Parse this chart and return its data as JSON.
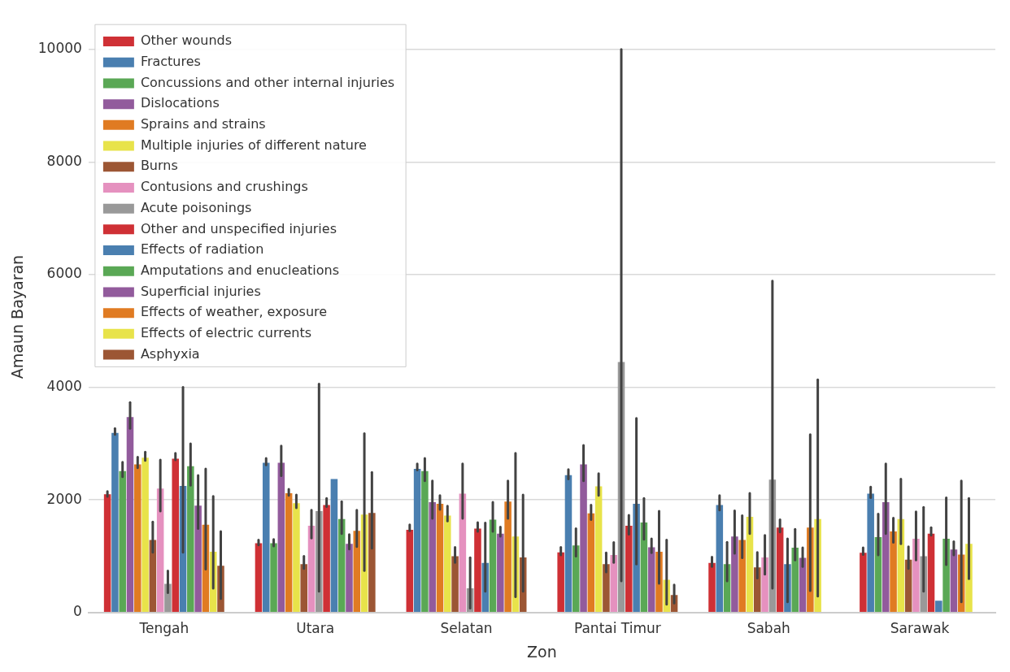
{
  "chart_data": {
    "type": "bar",
    "xlabel": "Zon",
    "ylabel": "Amaun Bayaran",
    "categories": [
      "Tengah",
      "Utara",
      "Selatan",
      "Pantai Timur",
      "Sabah",
      "Sarawak"
    ],
    "ylim": [
      0,
      10500
    ],
    "yticks": [
      0,
      2000,
      4000,
      6000,
      8000,
      10000
    ],
    "grid": "y",
    "legend": "top left",
    "series": [
      {
        "name": "Other wounds",
        "color": "#cf3035",
        "values": [
          2100,
          1230,
          1470,
          1070,
          880,
          1060
        ],
        "errors": [
          [
            2060,
            2150
          ],
          [
            1200,
            1290
          ],
          [
            1450,
            1560
          ],
          [
            1020,
            1160
          ],
          [
            815,
            985
          ],
          [
            1030,
            1150
          ]
        ]
      },
      {
        "name": "Fractures",
        "color": "#4a7fb0",
        "values": [
          3190,
          2660,
          2550,
          2440,
          1910,
          2110
        ],
        "errors": [
          [
            3160,
            3270
          ],
          [
            2620,
            2740
          ],
          [
            2530,
            2640
          ],
          [
            2370,
            2540
          ],
          [
            1820,
            2080
          ],
          [
            2040,
            2230
          ]
        ]
      },
      {
        "name": "Concussions and other internal injuries",
        "color": "#5aa855",
        "values": [
          2510,
          1230,
          2510,
          1190,
          860,
          1340
        ],
        "errors": [
          [
            2410,
            2670
          ],
          [
            1180,
            1300
          ],
          [
            2340,
            2740
          ],
          [
            1000,
            1490
          ],
          [
            560,
            1250
          ],
          [
            1020,
            1750
          ]
        ]
      },
      {
        "name": "Dislocations",
        "color": "#925b9c",
        "values": [
          3470,
          2660,
          1960,
          2630,
          1350,
          1960
        ],
        "errors": [
          [
            3270,
            3730
          ],
          [
            2430,
            2960
          ],
          [
            1670,
            2340
          ],
          [
            2340,
            2970
          ],
          [
            1050,
            1810
          ],
          [
            1400,
            2640
          ]
        ]
      },
      {
        "name": "Sprains and strains",
        "color": "#e07b22",
        "values": [
          2630,
          2120,
          1930,
          1760,
          1290,
          1440
        ],
        "errors": [
          [
            2570,
            2760
          ],
          [
            2080,
            2190
          ],
          [
            1830,
            2080
          ],
          [
            1650,
            1910
          ],
          [
            970,
            1720
          ],
          [
            1245,
            1680
          ]
        ]
      },
      {
        "name": "Multiple injuries of different nature",
        "color": "#e8e34a",
        "values": [
          2750,
          1940,
          1720,
          2240,
          1700,
          1660
        ],
        "errors": [
          [
            2700,
            2850
          ],
          [
            1860,
            2090
          ],
          [
            1625,
            1890
          ],
          [
            2080,
            2470
          ],
          [
            1400,
            2120
          ],
          [
            1220,
            2370
          ]
        ]
      },
      {
        "name": "Burns",
        "color": "#9c5634",
        "values": [
          1290,
          860,
          1000,
          860,
          800,
          940
        ],
        "errors": [
          [
            1070,
            1610
          ],
          [
            780,
            1000
          ],
          [
            890,
            1160
          ],
          [
            720,
            1060
          ],
          [
            610,
            1070
          ],
          [
            780,
            1170
          ]
        ]
      },
      {
        "name": "Contusions and crushings",
        "color": "#e591bf",
        "values": [
          2200,
          1540,
          2110,
          1020,
          980,
          1310
        ],
        "errors": [
          [
            1800,
            2710
          ],
          [
            1320,
            1820
          ],
          [
            1670,
            2640
          ],
          [
            890,
            1245
          ],
          [
            680,
            1370
          ],
          [
            930,
            1790
          ]
        ]
      },
      {
        "name": "Acute poisonings",
        "color": "#999999",
        "values": [
          510,
          1800,
          430,
          4450,
          2360,
          1000
        ],
        "errors": [
          [
            350,
            740
          ],
          [
            375,
            4060
          ],
          [
            75,
            975
          ],
          [
            560,
            10000
          ],
          [
            430,
            5890
          ],
          [
            375,
            1870
          ]
        ]
      },
      {
        "name": "Other and unspecified injuries",
        "color": "#cf3035",
        "values": [
          2730,
          1910,
          1490,
          1540,
          1510,
          1400
        ],
        "errors": [
          [
            2710,
            2830
          ],
          [
            1880,
            2030
          ],
          [
            1440,
            1600
          ],
          [
            1390,
            1730
          ],
          [
            1430,
            1650
          ],
          [
            1370,
            1510
          ]
        ]
      },
      {
        "name": "Effects of radiation",
        "color": "#4a7fb0",
        "values": [
          2250,
          2370,
          880,
          1930,
          860,
          210
        ],
        "errors": [
          [
            1070,
            4000
          ],
          null,
          [
            375,
            1590
          ],
          [
            860,
            3450
          ],
          [
            190,
            1310
          ],
          null
        ]
      },
      {
        "name": "Amputations and enucleations",
        "color": "#5aa855",
        "values": [
          2600,
          1660,
          1650,
          1600,
          1150,
          1310
        ],
        "errors": [
          [
            2260,
            3000
          ],
          [
            1400,
            1970
          ],
          [
            1440,
            1960
          ],
          [
            1300,
            2030
          ],
          [
            930,
            1480
          ],
          [
            850,
            2040
          ]
        ]
      },
      {
        "name": "Superficial injuries",
        "color": "#925b9c",
        "values": [
          1900,
          1220,
          1400,
          1160,
          970,
          1120
        ],
        "errors": [
          [
            1490,
            2435
          ],
          [
            1125,
            1385
          ],
          [
            1355,
            1520
          ],
          [
            1060,
            1310
          ],
          [
            815,
            1150
          ],
          [
            1020,
            1260
          ]
        ]
      },
      {
        "name": "Effects of weather, exposure",
        "color": "#e07b22",
        "values": [
          1560,
          1450,
          1970,
          1080,
          1510,
          1030
        ],
        "errors": [
          [
            770,
            2550
          ],
          [
            1170,
            1820
          ],
          [
            1670,
            2340
          ],
          [
            515,
            1800
          ],
          [
            385,
            3160
          ],
          [
            190,
            2340
          ]
        ]
      },
      {
        "name": "Effects of electric currents",
        "color": "#e8e34a",
        "values": [
          1080,
          1740,
          1350,
          580,
          1660,
          1220
        ],
        "errors": [
          [
            430,
            2065
          ],
          [
            745,
            3180
          ],
          [
            280,
            2830
          ],
          [
            145,
            1290
          ],
          [
            290,
            4135
          ],
          [
            600,
            2030
          ]
        ]
      },
      {
        "name": "Asphyxia",
        "color": "#9c5634",
        "values": [
          830,
          1770,
          980,
          310,
          null,
          null
        ],
        "errors": [
          [
            245,
            1440
          ],
          [
            1140,
            2490
          ],
          [
            375,
            2090
          ],
          [
            165,
            490
          ],
          null,
          null
        ]
      }
    ]
  }
}
